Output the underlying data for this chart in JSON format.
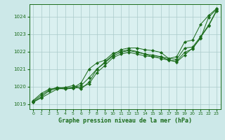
{
  "title": "Graphe pression niveau de la mer (hPa)",
  "bg_color": "#cce8e8",
  "plot_bg_color": "#daf0f0",
  "grid_color": "#aacaca",
  "line_color": "#1a6b1a",
  "xlim": [
    -0.5,
    23.5
  ],
  "ylim": [
    1018.7,
    1024.7
  ],
  "xticks": [
    0,
    1,
    2,
    3,
    4,
    5,
    6,
    7,
    8,
    9,
    10,
    11,
    12,
    13,
    14,
    15,
    16,
    17,
    18,
    19,
    20,
    21,
    22,
    23
  ],
  "yticks": [
    1019,
    1020,
    1021,
    1022,
    1023,
    1024
  ],
  "series": [
    {
      "x": [
        0,
        1,
        2,
        3,
        4,
        5,
        6,
        7,
        8,
        9,
        10,
        11,
        12,
        13,
        14,
        15,
        16,
        17,
        18,
        19,
        20,
        21,
        22,
        23
      ],
      "y": [
        1019.2,
        1019.6,
        1019.85,
        1019.9,
        1019.95,
        1020.05,
        1019.85,
        1020.25,
        1021.0,
        1021.4,
        1021.8,
        1022.1,
        1022.2,
        1022.2,
        1022.1,
        1022.05,
        1021.95,
        1021.6,
        1021.7,
        1022.55,
        1022.65,
        1023.55,
        1024.05,
        1024.45
      ]
    },
    {
      "x": [
        0,
        1,
        2,
        3,
        4,
        5,
        6,
        7,
        8,
        9,
        10,
        11,
        12,
        13,
        14,
        15,
        16,
        17,
        18,
        19,
        20,
        21,
        22,
        23
      ],
      "y": [
        1019.15,
        1019.5,
        1019.8,
        1019.95,
        1019.9,
        1019.95,
        1020.05,
        1020.5,
        1021.0,
        1021.35,
        1021.75,
        1021.95,
        1022.05,
        1021.95,
        1021.85,
        1021.8,
        1021.7,
        1021.6,
        1021.55,
        1022.2,
        1022.25,
        1022.85,
        1023.5,
        1024.35
      ]
    },
    {
      "x": [
        0,
        1,
        2,
        3,
        4,
        5,
        6,
        7,
        8,
        9,
        10,
        11,
        12,
        13,
        14,
        15,
        16,
        17,
        18,
        19,
        20,
        21,
        22,
        23
      ],
      "y": [
        1019.1,
        1019.4,
        1019.75,
        1019.9,
        1019.85,
        1019.9,
        1019.95,
        1020.15,
        1020.8,
        1021.2,
        1021.65,
        1021.85,
        1021.95,
        1021.85,
        1021.75,
        1021.7,
        1021.6,
        1021.5,
        1021.45,
        1021.95,
        1022.15,
        1022.8,
        1023.45,
        1024.3
      ]
    },
    {
      "x": [
        0,
        1,
        3,
        4,
        5,
        6,
        7,
        8,
        9,
        10,
        11,
        12,
        13,
        14,
        15,
        16,
        17,
        18,
        19,
        20,
        21,
        22,
        23
      ],
      "y": [
        1019.1,
        1019.35,
        1019.85,
        1019.9,
        1019.92,
        1020.2,
        1021.0,
        1021.35,
        1021.5,
        1021.9,
        1022.0,
        1022.1,
        1022.0,
        1021.85,
        1021.7,
        1021.7,
        1021.5,
        1021.4,
        1021.8,
        1022.2,
        1022.75,
        1023.95,
        1024.4
      ]
    }
  ]
}
